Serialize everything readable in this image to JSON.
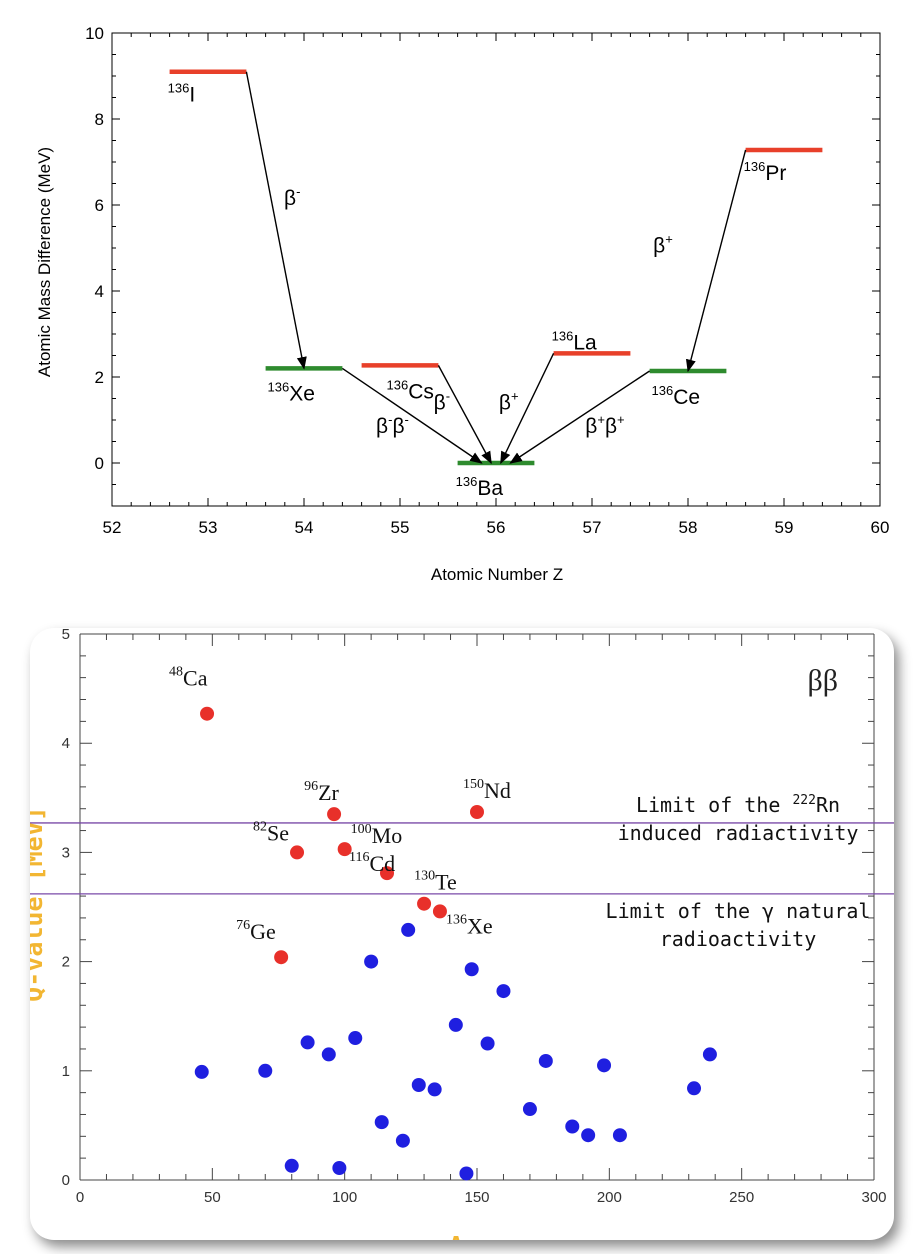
{
  "charts": [
    {
      "type": "level-diagram",
      "xlabel": "Atomic Number Z",
      "ylabel": "Atomic Mass Difference (MeV)",
      "xlim": [
        52,
        60
      ],
      "ylim": [
        -1,
        10
      ],
      "x_ticks": [
        "52",
        "53",
        "54",
        "55",
        "56",
        "57",
        "58",
        "59",
        "60"
      ],
      "y_ticks": [
        "0",
        "2",
        "4",
        "6",
        "8",
        "10"
      ],
      "colors": {
        "unstable": "#e8402a",
        "stable": "#2e8b2e"
      },
      "levels": [
        {
          "z": 53,
          "energy": 9.1,
          "mass": "136",
          "symbol": "I",
          "kind": "unstable"
        },
        {
          "z": 54,
          "energy": 2.2,
          "mass": "136",
          "symbol": "Xe",
          "kind": "stable"
        },
        {
          "z": 55,
          "energy": 2.27,
          "mass": "136",
          "symbol": "Cs",
          "kind": "unstable"
        },
        {
          "z": 56,
          "energy": 0.0,
          "mass": "136",
          "symbol": "Ba",
          "kind": "stable"
        },
        {
          "z": 57,
          "energy": 2.55,
          "mass": "136",
          "symbol": "La",
          "kind": "unstable"
        },
        {
          "z": 58,
          "energy": 2.14,
          "mass": "136",
          "symbol": "Ce",
          "kind": "stable"
        },
        {
          "z": 59,
          "energy": 7.28,
          "mass": "136",
          "symbol": "Pr",
          "kind": "unstable"
        }
      ],
      "transitions": [
        {
          "from": "I",
          "to": "Xe",
          "label_base": "β",
          "label_sup": "-"
        },
        {
          "from": "Xe",
          "to": "Ba",
          "label_base": "β",
          "label_sup": "-",
          "label_base2": "β",
          "label_sup2": "-"
        },
        {
          "from": "Cs",
          "to": "Ba",
          "label_base": "β",
          "label_sup": "-"
        },
        {
          "from": "La",
          "to": "Ba",
          "label_base": "β",
          "label_sup": "+"
        },
        {
          "from": "Ce",
          "to": "Ba",
          "label_base": "β",
          "label_sup": "+",
          "label_base2": "β",
          "label_sup2": "+"
        },
        {
          "from": "Pr",
          "to": "Ce",
          "label_base": "β",
          "label_sup": "+"
        }
      ]
    },
    {
      "type": "scatter",
      "title": "ββ",
      "xlabel": "A",
      "ylabel": "Q-value [MeV]",
      "xlim": [
        0,
        300
      ],
      "ylim": [
        0,
        5
      ],
      "x_ticks": [
        "0",
        "50",
        "100",
        "150",
        "200",
        "250",
        "300"
      ],
      "y_ticks": [
        "0",
        "1",
        "2",
        "3",
        "4",
        "5"
      ],
      "colors": {
        "labeled": "#e8302a",
        "other": "#1f1fe0",
        "limit_line": "#7a4aa8",
        "axis_label": "#f2b632"
      },
      "labeled_points": [
        {
          "a": 48,
          "q": 4.27,
          "mass": "48",
          "symbol": "Ca"
        },
        {
          "a": 76,
          "q": 2.04,
          "mass": "76",
          "symbol": "Ge"
        },
        {
          "a": 82,
          "q": 3.0,
          "mass": "82",
          "symbol": "Se"
        },
        {
          "a": 96,
          "q": 3.35,
          "mass": "96",
          "symbol": "Zr"
        },
        {
          "a": 100,
          "q": 3.03,
          "mass": "100",
          "symbol": "Mo"
        },
        {
          "a": 116,
          "q": 2.81,
          "mass": "116",
          "symbol": "Cd"
        },
        {
          "a": 130,
          "q": 2.53,
          "mass": "130",
          "symbol": "Te"
        },
        {
          "a": 136,
          "q": 2.46,
          "mass": "136",
          "symbol": "Xe"
        },
        {
          "a": 150,
          "q": 3.37,
          "mass": "150",
          "symbol": "Nd"
        }
      ],
      "other_points": [
        {
          "a": 46,
          "q": 0.99
        },
        {
          "a": 70,
          "q": 1.0
        },
        {
          "a": 80,
          "q": 0.13
        },
        {
          "a": 86,
          "q": 1.26
        },
        {
          "a": 94,
          "q": 1.15
        },
        {
          "a": 98,
          "q": 0.11
        },
        {
          "a": 104,
          "q": 1.3
        },
        {
          "a": 110,
          "q": 2.0
        },
        {
          "a": 114,
          "q": 0.53
        },
        {
          "a": 122,
          "q": 0.36
        },
        {
          "a": 124,
          "q": 2.29
        },
        {
          "a": 128,
          "q": 0.87
        },
        {
          "a": 134,
          "q": 0.83
        },
        {
          "a": 142,
          "q": 1.42
        },
        {
          "a": 146,
          "q": 0.06
        },
        {
          "a": 148,
          "q": 1.93
        },
        {
          "a": 154,
          "q": 1.25
        },
        {
          "a": 160,
          "q": 1.73
        },
        {
          "a": 170,
          "q": 0.65
        },
        {
          "a": 176,
          "q": 1.09
        },
        {
          "a": 186,
          "q": 0.49
        },
        {
          "a": 192,
          "q": 0.41
        },
        {
          "a": 198,
          "q": 1.05
        },
        {
          "a": 204,
          "q": 0.41
        },
        {
          "a": 232,
          "q": 0.84
        },
        {
          "a": 238,
          "q": 1.15
        }
      ],
      "limit_lines": [
        {
          "q": 3.27,
          "text_line1_prefix": "Limit of the ",
          "text_line1_sup": "222",
          "text_line1_suffix": "Rn",
          "text_line2": "induced radiactivity"
        },
        {
          "q": 2.62,
          "text_line1_prefix": "Limit of the ",
          "text_line1_symbol": "γ",
          "text_line1_suffix": " natural",
          "text_line2": "radioactivity"
        }
      ]
    }
  ]
}
